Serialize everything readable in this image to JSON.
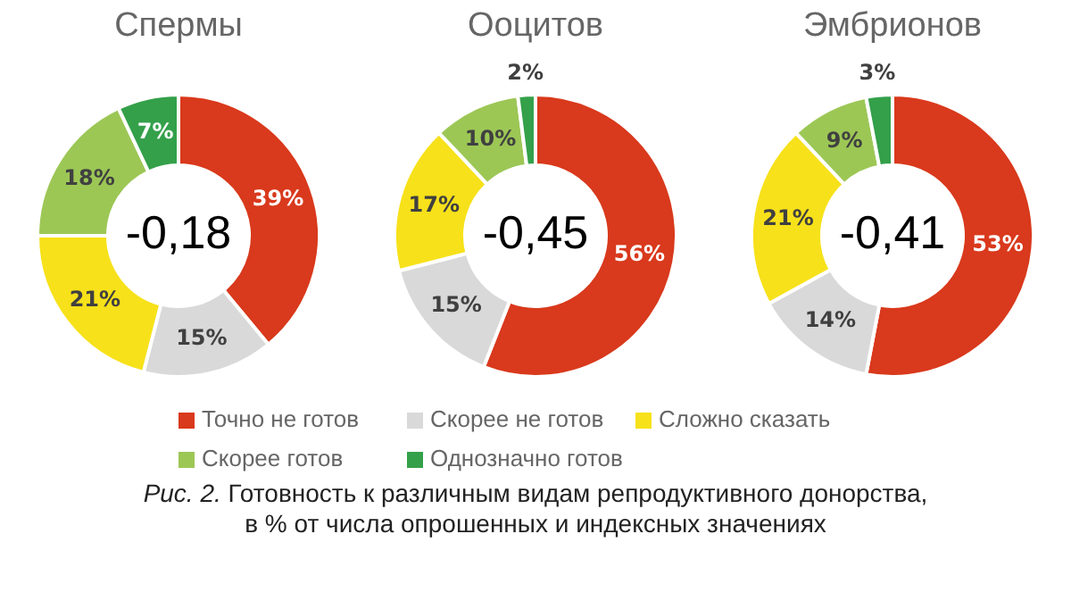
{
  "chart_data": [
    {
      "type": "donut",
      "title": "Спермы",
      "categories": [
        "Точно не готов",
        "Скорее не готов",
        "Сложно сказать",
        "Скорее готов",
        "Однозначно готов"
      ],
      "values": [
        39,
        15,
        21,
        18,
        7
      ],
      "value_labels": [
        "39%",
        "15%",
        "21%",
        "18%",
        "7%"
      ],
      "colors": [
        "#d9391c",
        "#d9d9d9",
        "#f7e11a",
        "#9cc755",
        "#34a04a"
      ],
      "legend": "bottom",
      "annotations": [
        "-0,18",
        "Рис. 2. Готовность к различным видам репродуктивного донорства, в % от числа опрошенных и индексных значениях"
      ]
    },
    {
      "type": "donut",
      "title": "Ооцитов",
      "categories": [
        null,
        null,
        null,
        null,
        null
      ],
      "values": [
        56,
        15,
        17,
        10,
        2
      ],
      "value_labels": [
        "56%",
        "15%",
        "17%",
        "10%",
        "2%"
      ],
      "colors": [
        "#d9391c",
        "#d9d9d9",
        "#f7e11a",
        "#9cc755",
        "#34a04a"
      ],
      "annotations": [
        "-0,45"
      ]
    },
    {
      "type": "donut",
      "title": "Эмбрионов",
      "categories": [
        null,
        null,
        null,
        null,
        null
      ],
      "values": [
        53,
        14,
        21,
        9,
        3
      ],
      "value_labels": [
        "53%",
        "14%",
        "21%",
        "9%",
        "3%"
      ],
      "colors": [
        "#d9391c",
        "#d9d9d9",
        "#f7e11a",
        "#9cc755",
        "#34a04a"
      ],
      "annotations": [
        "-0,41"
      ]
    }
  ]
}
